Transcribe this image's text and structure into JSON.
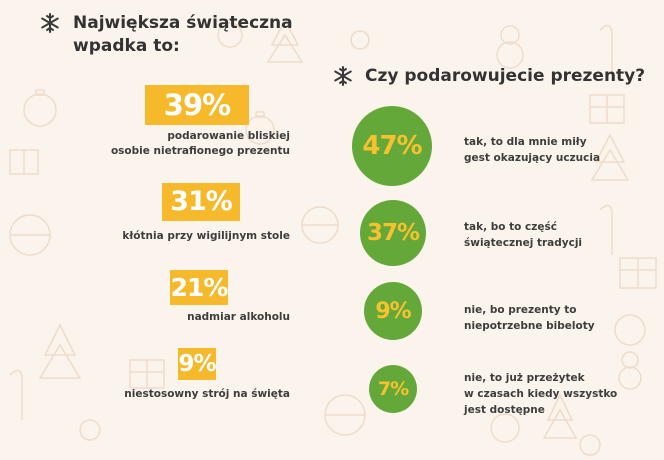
{
  "left": {
    "title_lines": [
      "Największa świąteczna",
      "wpadka to:"
    ],
    "items": [
      {
        "percent": "39%",
        "caption": [
          "podarowanie bliskiej",
          "osobie nietrafionego prezentu"
        ]
      },
      {
        "percent": "31%",
        "caption": [
          "kłótnia przy wigilijnym stole"
        ]
      },
      {
        "percent": "21%",
        "caption": [
          "nadmiar alkoholu"
        ]
      },
      {
        "percent": "9%",
        "caption": [
          "niestosowny strój na święta"
        ]
      }
    ]
  },
  "right": {
    "title": "Czy podarowujecie prezenty?",
    "items": [
      {
        "percent": "47%",
        "caption": [
          "tak, to dla mnie miły",
          "gest okazujący uczucia"
        ]
      },
      {
        "percent": "37%",
        "caption": [
          "tak, bo to część",
          "świątecznej tradycji"
        ]
      },
      {
        "percent": "9%",
        "caption": [
          "nie, bo prezenty to",
          "niepotrzebne bibeloty"
        ]
      },
      {
        "percent": "7%",
        "caption": [
          "nie, to już przeżytek",
          "w czasach kiedy wszystko",
          "jest dostępne"
        ]
      }
    ]
  },
  "icons": {
    "heading_left": "snowflake-icon",
    "heading_right": "snowflake-icon"
  },
  "colors": {
    "background": "#fbf4ec",
    "accent_yellow": "#f6b92b",
    "accent_green": "#64a83a"
  }
}
